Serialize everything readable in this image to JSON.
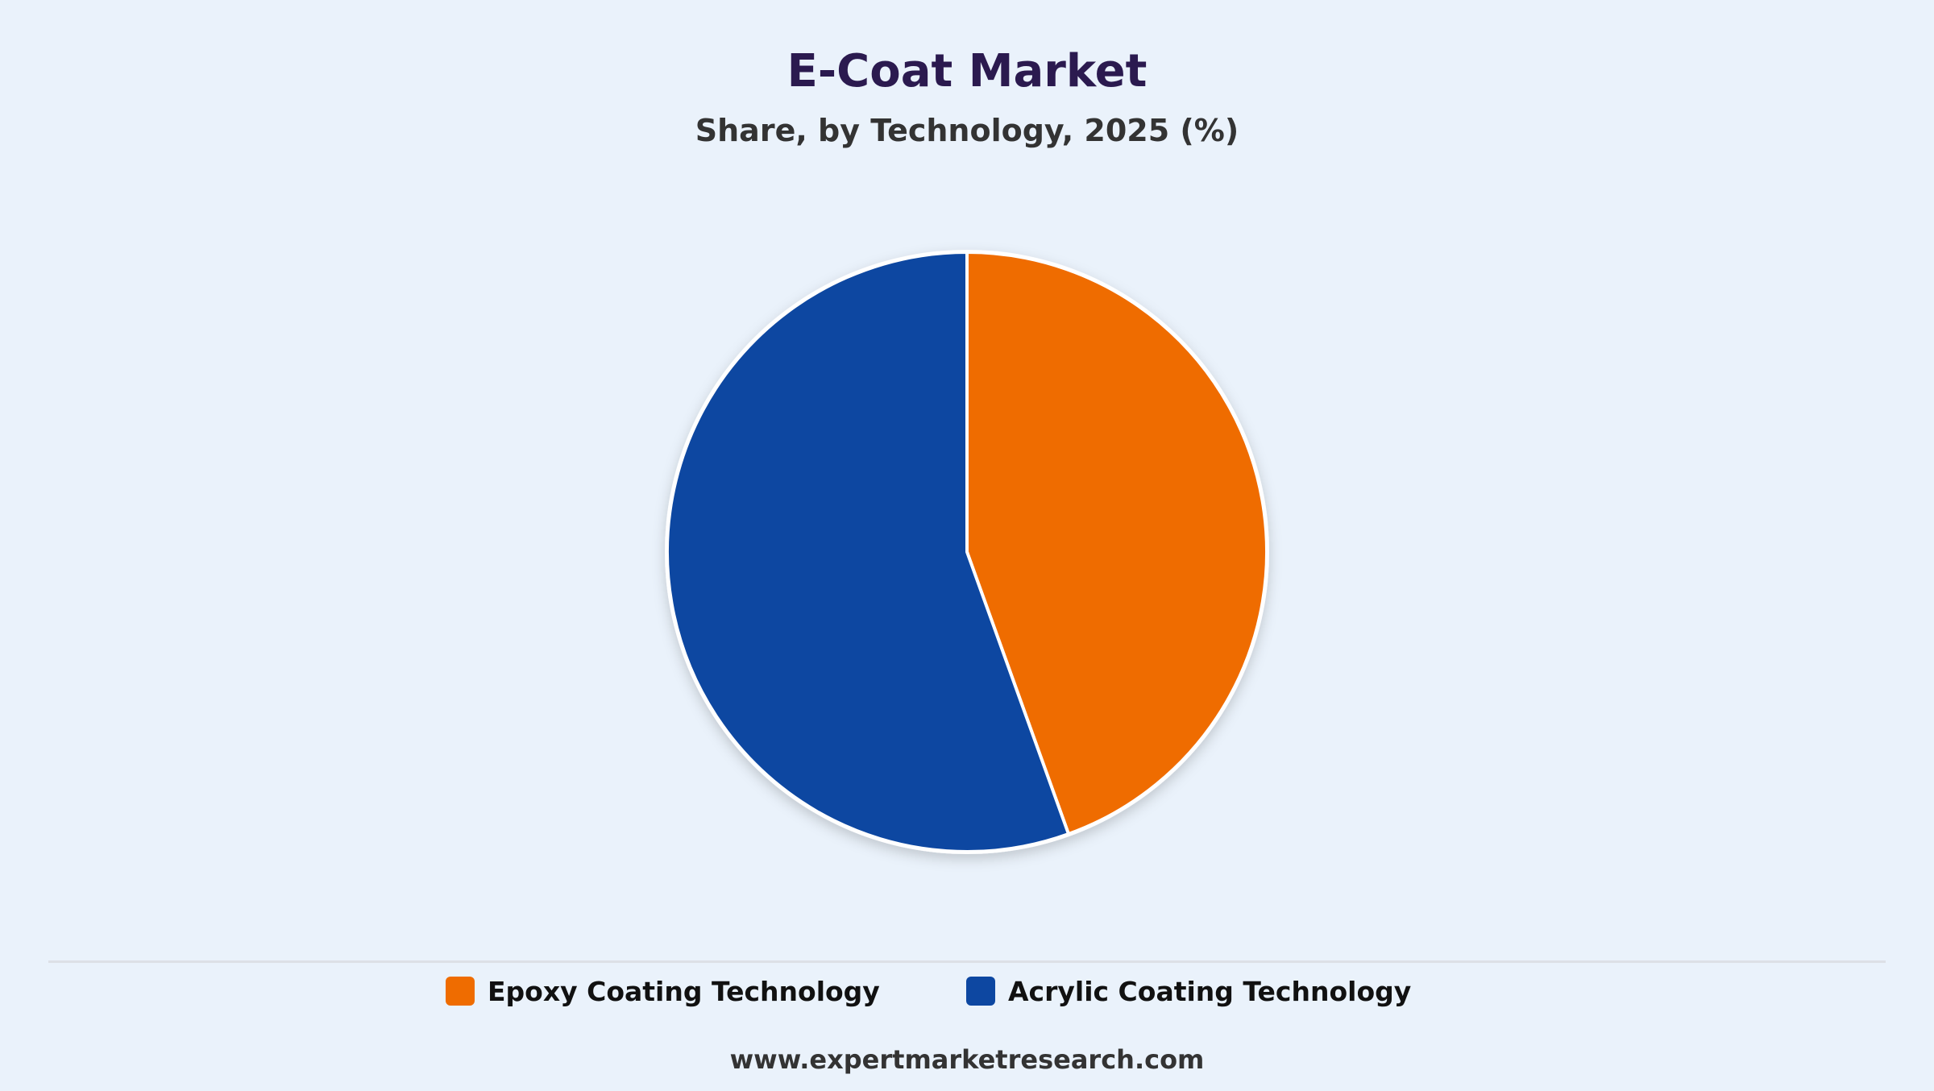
{
  "title": "E-Coat Market",
  "subtitle": "Share, by Technology, 2025 (%)",
  "footer": "www.expertmarketresearch.com",
  "chart_data": {
    "type": "pie",
    "title": "E-Coat Market",
    "subtitle": "Share, by Technology, 2025 (%)",
    "categories": [
      "Epoxy Coating Technology",
      "Acrylic Coating Technology"
    ],
    "values": [
      44.5,
      55.5
    ],
    "colors": [
      "#ef6c00",
      "#0d47a1"
    ],
    "start_angle_deg": 0,
    "direction": "clockwise",
    "legend_position": "bottom"
  }
}
